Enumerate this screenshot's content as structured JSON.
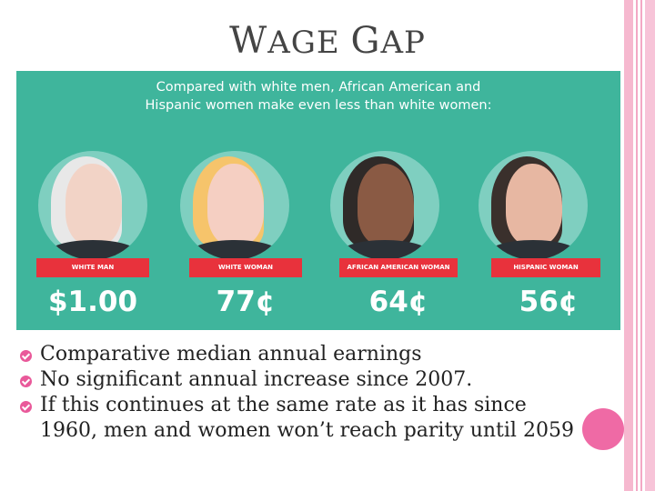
{
  "title": {
    "first_cap": "W",
    "first_rest": "AGE",
    "second_cap": "G",
    "second_rest": "AP"
  },
  "infographic": {
    "heading_line1": "Compared with white men, African American and",
    "heading_line2": "Hispanic women make even less than white women:",
    "background": "#3fb59c",
    "groups": [
      {
        "label": "WHITE MAN",
        "amount": "$1.00",
        "hair": "#e8e8e8",
        "skin": "#f2d3c6"
      },
      {
        "label": "WHITE WOMAN",
        "amount": "77¢",
        "hair": "#f6c46b",
        "skin": "#f5cfc2"
      },
      {
        "label": "AFRICAN AMERICAN WOMAN",
        "amount": "64¢",
        "hair": "#2f2a28",
        "skin": "#8a5a44"
      },
      {
        "label": "HISPANIC WOMAN",
        "amount": "56¢",
        "hair": "#3a302c",
        "skin": "#e7b7a2"
      }
    ]
  },
  "bullets": [
    "Comparative median annual earnings",
    "No significant annual increase since 2007.",
    "If this continues at the same rate as it has since",
    "1960, men and women won’t reach parity until 2059"
  ],
  "colors": {
    "accent": "#e9599a",
    "ribbon": "#e8323c"
  }
}
